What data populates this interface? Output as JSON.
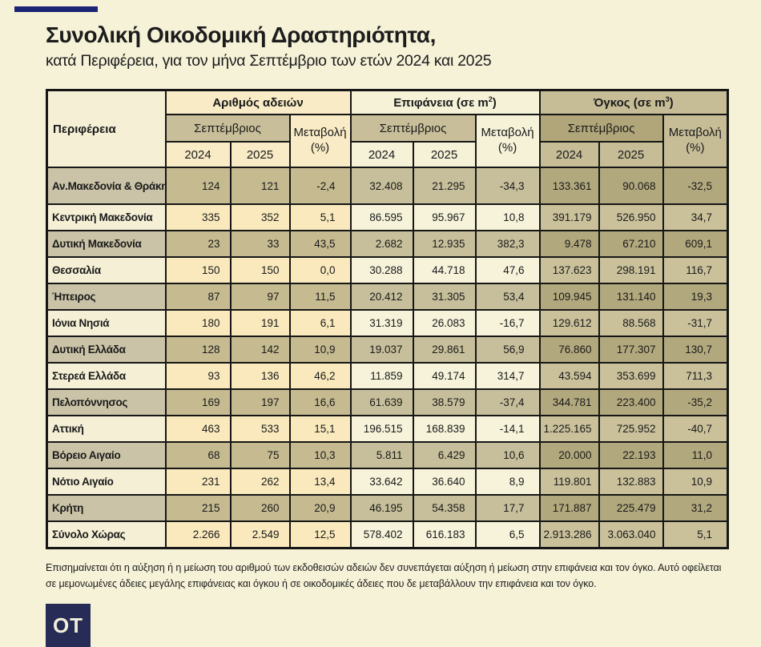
{
  "header": {
    "title": "Συνολική Οικοδομική Δραστηριότητα,",
    "subtitle": "κατά Περιφέρεια, για τον μήνα Σεπτέμβριο των ετών 2024 και 2025"
  },
  "footnote": "Επισημαίνεται ότι η αύξηση ή η μείωση του αριθμού των εκδοθεισών αδειών δεν συνεπάγεται αύξηση ή μείωση στην επιφάνεια και τον όγκο. Αυτό οφείλεται σε μεμονωμένες άδειες μεγάλης επιφάνειας και όγκου ή σε οικοδομικές άδειες που δε μεταβάλλουν την επιφάνεια και τον όγκο.",
  "logo": {
    "text": "OT"
  },
  "colors": {
    "page-bg": "#f6f2d8",
    "ink": "#1a1a1a",
    "navy": "#1b2475",
    "logo-navy": "#262c55",
    "logo-text": "#f3eeda",
    "border": "#161616",
    "label-light": "#f4efd5",
    "label-dark": "#cac3a7",
    "g1-light": "#f9e9bd",
    "g1-dark": "#c5ba90",
    "g2-light": "#f6f3da",
    "g2-dark": "#c7bf9b",
    "g3-light": "#cac19b",
    "g3-dark": "#b2a87d",
    "head-region": "#f4efd5",
    "g1-head": "#f8ebc5",
    "g2-head": "#f5f2d8",
    "g3-head": "#c6bd97",
    "sept-khaki": "#c8bf9a",
    "sept-dark": "#b0a67a"
  },
  "chart_data": {
    "type": "table",
    "title": "Συνολική Οικοδομική Δραστηριότητα, κατά Περιφέρεια, για τον μήνα Σεπτέμβριο των ετών 2024 και 2025",
    "region_header": "Περιφέρεια",
    "column_groups": [
      {
        "label_pre": "Αριθμός αδειών",
        "label_sup": "",
        "label_post": ""
      },
      {
        "label_pre": "Επιφάνεια (σε m",
        "label_sup": "2",
        "label_post": ")"
      },
      {
        "label_pre": "Όγκος (σε m",
        "label_sup": "3",
        "label_post": ")"
      }
    ],
    "month_header": "Σεπτέμβριος",
    "change_header_line1": "Μεταβολή",
    "change_header_line2": "(%)",
    "years": [
      "2024",
      "2025"
    ],
    "columns": [
      "Αριθμός αδειών Σεπτέμβριος 2024",
      "Αριθμός αδειών Σεπτέμβριος 2025",
      "Αριθμός αδειών Μεταβολή (%)",
      "Επιφάνεια (σε m2) Σεπτέμβριος 2024",
      "Επιφάνεια (σε m2) Σεπτέμβριος 2025",
      "Επιφάνεια Μεταβολή (%)",
      "Όγκος (σε m3) Σεπτέμβριος 2024",
      "Όγκος (σε m3) Σεπτέμβριος 2025",
      "Όγκος Μεταβολή (%)"
    ],
    "rows": [
      {
        "region": "Αν.Μακεδονία & Θράκη",
        "values": [
          "124",
          "121",
          "-2,4",
          "32.408",
          "21.295",
          "-34,3",
          "133.361",
          "90.068",
          "-32,5"
        ]
      },
      {
        "region": "Κεντρική Μακεδονία",
        "values": [
          "335",
          "352",
          "5,1",
          "86.595",
          "95.967",
          "10,8",
          "391.179",
          "526.950",
          "34,7"
        ]
      },
      {
        "region": "Δυτική Μακεδονία",
        "values": [
          "23",
          "33",
          "43,5",
          "2.682",
          "12.935",
          "382,3",
          "9.478",
          "67.210",
          "609,1"
        ]
      },
      {
        "region": "Θεσσαλία",
        "values": [
          "150",
          "150",
          "0,0",
          "30.288",
          "44.718",
          "47,6",
          "137.623",
          "298.191",
          "116,7"
        ]
      },
      {
        "region": "Ήπειρος",
        "values": [
          "87",
          "97",
          "11,5",
          "20.412",
          "31.305",
          "53,4",
          "109.945",
          "131.140",
          "19,3"
        ]
      },
      {
        "region": "Ιόνια Νησιά",
        "values": [
          "180",
          "191",
          "6,1",
          "31.319",
          "26.083",
          "-16,7",
          "129.612",
          "88.568",
          "-31,7"
        ]
      },
      {
        "region": "Δυτική Ελλάδα",
        "values": [
          "128",
          "142",
          "10,9",
          "19.037",
          "29.861",
          "56,9",
          "76.860",
          "177.307",
          "130,7"
        ]
      },
      {
        "region": "Στερεά Ελλάδα",
        "values": [
          "93",
          "136",
          "46,2",
          "11.859",
          "49.174",
          "314,7",
          "43.594",
          "353.699",
          "711,3"
        ]
      },
      {
        "region": "Πελοπόννησος",
        "values": [
          "169",
          "197",
          "16,6",
          "61.639",
          "38.579",
          "-37,4",
          "344.781",
          "223.400",
          "-35,2"
        ]
      },
      {
        "region": "Αττική",
        "values": [
          "463",
          "533",
          "15,1",
          "196.515",
          "168.839",
          "-14,1",
          "1.225.165",
          "725.952",
          "-40,7"
        ]
      },
      {
        "region": "Βόρειο Αιγαίο",
        "values": [
          "68",
          "75",
          "10,3",
          "5.811",
          "6.429",
          "10,6",
          "20.000",
          "22.193",
          "11,0"
        ]
      },
      {
        "region": "Νότιο Αιγαίο",
        "values": [
          "231",
          "262",
          "13,4",
          "33.642",
          "36.640",
          "8,9",
          "119.801",
          "132.883",
          "10,9"
        ]
      },
      {
        "region": "Κρήτη",
        "values": [
          "215",
          "260",
          "20,9",
          "46.195",
          "54.358",
          "17,7",
          "171.887",
          "225.479",
          "31,2"
        ]
      },
      {
        "region": "Σύνολο Χώρας",
        "values": [
          "2.266",
          "2.549",
          "12,5",
          "578.402",
          "616.183",
          "6,5",
          "2.913.286",
          "3.063.040",
          "5,1"
        ]
      }
    ]
  }
}
